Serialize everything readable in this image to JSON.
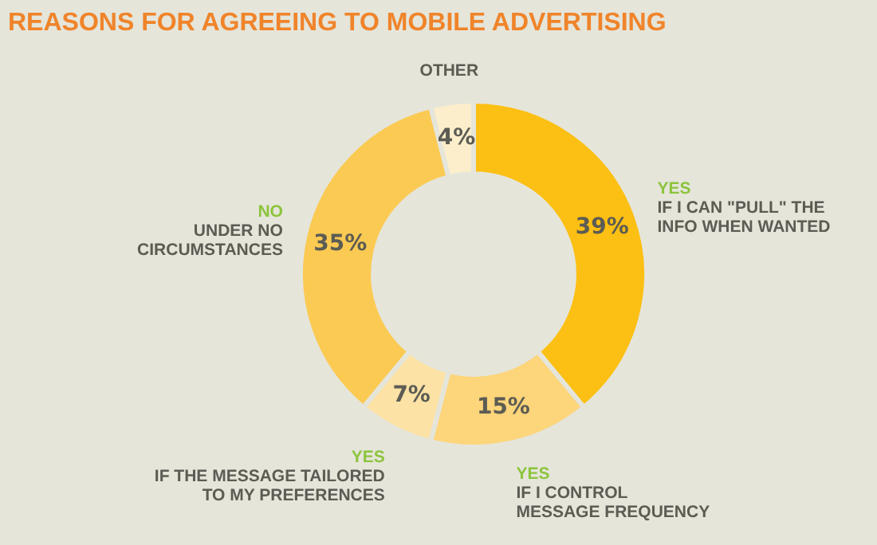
{
  "chart_data": {
    "type": "donut",
    "title": "REASONS FOR AGREEING TO MOBILE ADVERTISING",
    "categories": [
      "YES\nIF I CAN \"PULL\" THE\nINFO WHEN WANTED",
      "YES\nIF I CONTROL\nMESSAGE FREQUENCY",
      "YES\nIF THE MESSAGE TAILORED\nTO MY PREFERENCES",
      "NO\nUNDER NO\nCIRCUMSTANCES",
      "OTHER"
    ],
    "values": [
      39,
      15,
      7,
      35,
      4
    ],
    "colors": [
      "#fcbf13",
      "#fdd57a",
      "#fde2a6",
      "#fbca52",
      "#fdeecb"
    ],
    "value_labels": [
      "39%",
      "15%",
      "7%",
      "35%",
      "4%"
    ],
    "legend": false
  }
}
